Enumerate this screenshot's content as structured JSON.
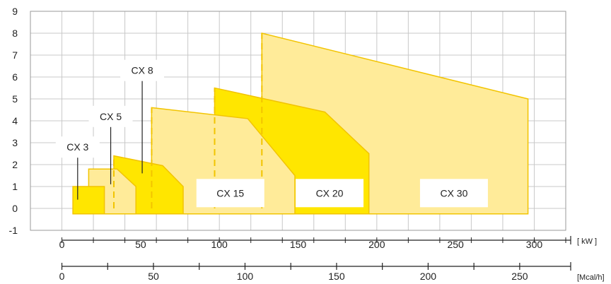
{
  "chart_data": {
    "type": "area",
    "title": "",
    "xlabel": "kW",
    "ylabel": "",
    "x_unit_label": "[ kW ]",
    "x2_unit_label": "[Mcal/h]",
    "xlim": [
      -20,
      320
    ],
    "ylim": [
      -1,
      9
    ],
    "grid": true,
    "colors": {
      "light": "#FFEB99",
      "dark": "#FFE600",
      "edge": "#F2C400",
      "grid": "#c8c8c8"
    },
    "y_ticks": [
      "-1",
      "0",
      "1",
      "2",
      "3",
      "4",
      "5",
      "6",
      "7",
      "8",
      "9"
    ],
    "x_ticks": [
      "0",
      "50",
      "100",
      "150",
      "200",
      "250",
      "300"
    ],
    "x2_ticks": [
      "0",
      "50",
      "100",
      "150",
      "200",
      "250"
    ],
    "series": [
      {
        "name": "CX 30",
        "shade": "light",
        "points": [
          [
            127,
            -0.25
          ],
          [
            127,
            8
          ],
          [
            296,
            5
          ],
          [
            296,
            -0.25
          ]
        ]
      },
      {
        "name": "CX 20",
        "shade": "dark",
        "points": [
          [
            97,
            -0.25
          ],
          [
            97,
            5.5
          ],
          [
            167,
            4.4
          ],
          [
            195,
            2.5
          ],
          [
            195,
            -0.25
          ]
        ]
      },
      {
        "name": "CX 15",
        "shade": "light",
        "points": [
          [
            57,
            -0.25
          ],
          [
            57,
            4.6
          ],
          [
            118,
            4.1
          ],
          [
            148,
            1.5
          ],
          [
            148,
            -0.25
          ]
        ]
      },
      {
        "name": "CX 8",
        "shade": "dark",
        "points": [
          [
            33,
            -0.25
          ],
          [
            33,
            2.4
          ],
          [
            64,
            1.95
          ],
          [
            77,
            1.0
          ],
          [
            77,
            -0.25
          ]
        ]
      },
      {
        "name": "CX 5",
        "shade": "light",
        "points": [
          [
            17,
            -0.25
          ],
          [
            17,
            1.8
          ],
          [
            35,
            1.8
          ],
          [
            47,
            1.0
          ],
          [
            47,
            -0.25
          ]
        ]
      },
      {
        "name": "CX 3",
        "shade": "dark",
        "points": [
          [
            7,
            -0.25
          ],
          [
            7,
            1.0
          ],
          [
            27,
            1.0
          ],
          [
            27,
            -0.25
          ]
        ]
      }
    ],
    "dashed_markers": [
      {
        "x": 33,
        "y0": 0,
        "y1": 2.4
      },
      {
        "x": 57,
        "y0": 0,
        "y1": 4.6
      },
      {
        "x": 97,
        "y0": 0,
        "y1": 5.5
      },
      {
        "x": 127,
        "y0": 0,
        "y1": 8
      }
    ],
    "annotations": [
      {
        "text": "CX 3",
        "x": 10,
        "y": 2.8,
        "leader_to": [
          10,
          0.4
        ]
      },
      {
        "text": "CX 5",
        "x": 31,
        "y": 4.2,
        "leader_to": [
          31,
          1.1
        ]
      },
      {
        "text": "CX 8",
        "x": 51,
        "y": 6.3,
        "leader_to": [
          51,
          1.6
        ]
      },
      {
        "text": "CX 15",
        "x": 107,
        "y": 0.7
      },
      {
        "text": "CX 20",
        "x": 170,
        "y": 0.7
      },
      {
        "text": "CX 30",
        "x": 249,
        "y": 0.7
      }
    ]
  }
}
